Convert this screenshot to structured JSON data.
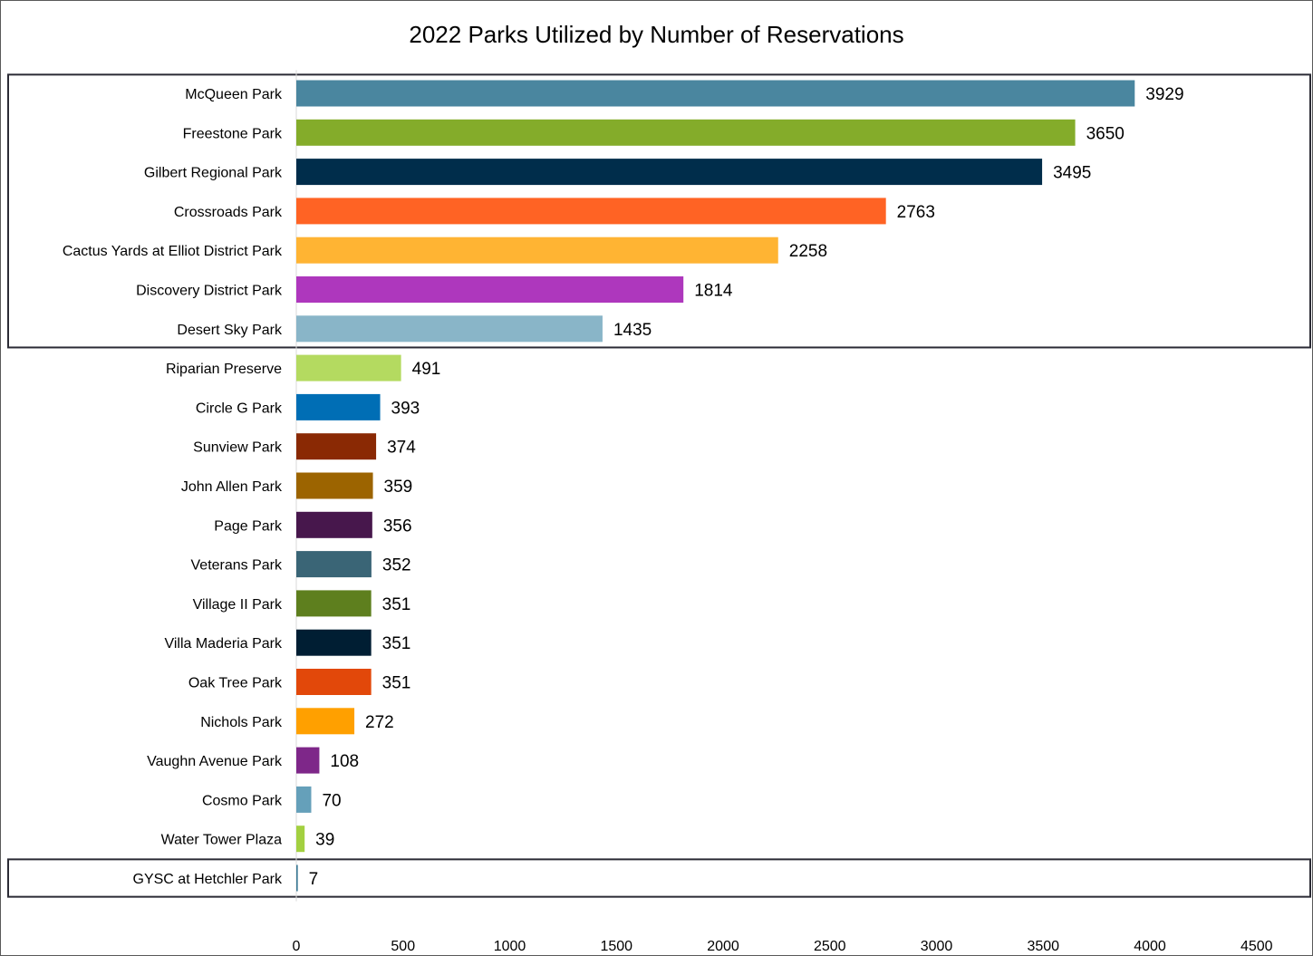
{
  "chart_data": {
    "type": "bar",
    "orientation": "horizontal",
    "title": "2022 Parks Utilized by Number of Reservations",
    "xlabel": "",
    "ylabel": "",
    "xlim": [
      0,
      4500
    ],
    "xticks": [
      "0",
      "500",
      "1000",
      "1500",
      "2000",
      "2500",
      "3000",
      "3500",
      "4000",
      "4500"
    ],
    "grid": false,
    "legend": "none",
    "categories": [
      "McQueen Park",
      "Freestone Park",
      "Gilbert Regional Park",
      "Crossroads Park",
      "Cactus Yards at Elliot District Park",
      "Discovery District Park",
      "Desert Sky Park",
      "Riparian Preserve",
      "Circle G Park",
      "Sunview Park",
      "John Allen Park",
      "Page Park",
      "Veterans Park",
      "Village II Park",
      "Villa Maderia Park",
      "Oak Tree Park",
      "Nichols Park",
      "Vaughn Avenue Park",
      "Cosmo Park",
      "Water Tower Plaza",
      "GYSC at Hetchler Park"
    ],
    "values": [
      3929,
      3650,
      3495,
      2763,
      2258,
      1814,
      1435,
      491,
      393,
      374,
      359,
      356,
      352,
      351,
      351,
      351,
      272,
      108,
      70,
      39,
      7
    ],
    "bar_colors": [
      "#4A869F",
      "#84AC2A",
      "#002D4B",
      "#FF6324",
      "#FFB433",
      "#AE37BD",
      "#89B5C8",
      "#B4DA60",
      "#006EB5",
      "#8A2904",
      "#9C6400",
      "#47174C",
      "#3A6576",
      "#5E7F1E",
      "#001E33",
      "#E2480A",
      "#FFA000",
      "#7E2789",
      "#65A0BA",
      "#A3D040",
      "#3C7A95"
    ],
    "highlight_groups": [
      {
        "first": 0,
        "last": 6
      },
      {
        "first": 20,
        "last": 20
      }
    ]
  }
}
